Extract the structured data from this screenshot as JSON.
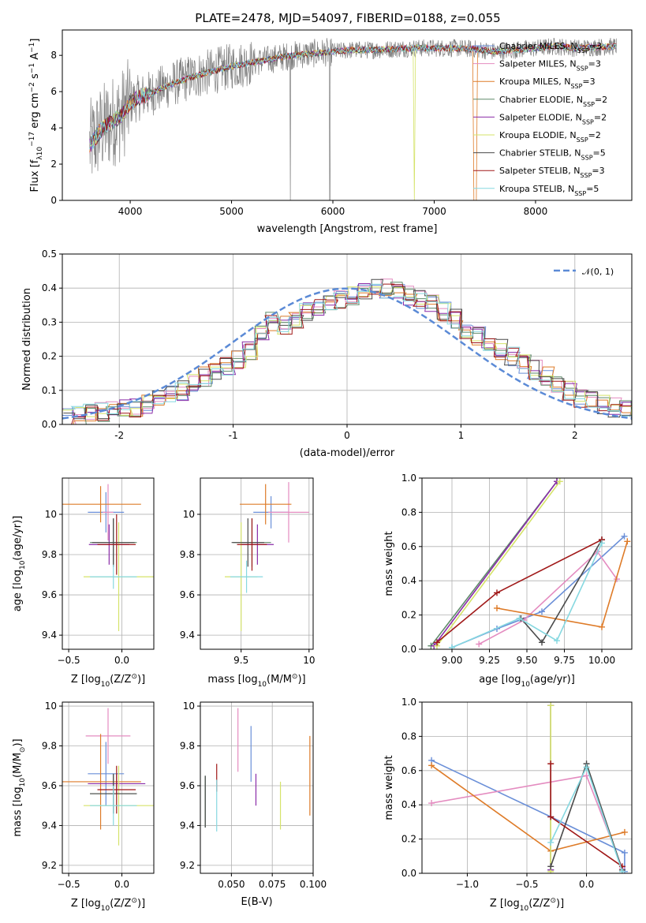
{
  "figure": {
    "title": "PLATE=2478, MJD=54097, FIBERID=0188, z=0.055"
  },
  "colors": {
    "data": "#808080",
    "chabrier_miles": "#6a8fd8",
    "salpeter_miles": "#e48cc0",
    "kroupa_miles": "#de7b28",
    "chabrier_elodie": "#5e8a6a",
    "salpeter_elodie": "#8a2ca8",
    "kroupa_elodie": "#d5e36a",
    "chabrier_stelib": "#4a4a4a",
    "salpeter_stelib": "#a01818",
    "kroupa_stelib": "#86d8e0",
    "gauss": "#5b8ad6",
    "grid": "#b0b0b0"
  },
  "chart_data": [
    {
      "id": "spectrum",
      "type": "line",
      "title": "PLATE=2478, MJD=54097, FIBERID=0188, z=0.055",
      "xlabel": "wavelength [Angstrom, rest frame]",
      "ylabel": "Flux [f",
      "ylabel_parts": [
        "Flux [f",
        "λ",
        "10",
        "−17",
        " erg cm",
        "−2",
        " s",
        "−1",
        " A",
        "−1",
        "]"
      ],
      "xlim": [
        3330,
        8950
      ],
      "ylim": [
        0,
        9.4
      ],
      "xticks": [
        4000,
        5000,
        6000,
        7000,
        8000
      ],
      "yticks": [
        0,
        2,
        4,
        6,
        8
      ],
      "grid": false,
      "legend_position": "top-right",
      "continuum": {
        "x": [
          3600,
          3700,
          3800,
          3900,
          4000,
          4100,
          4200,
          4400,
          4600,
          4800,
          5000,
          5200,
          5400,
          5600,
          5800,
          6000,
          6200,
          6400,
          6600,
          6800,
          7000,
          7200,
          7400,
          7600,
          7800,
          8000,
          8200,
          8400,
          8600,
          8800
        ],
        "y": [
          3.0,
          3.8,
          4.3,
          4.6,
          5.4,
          5.7,
          5.9,
          6.4,
          6.8,
          7.1,
          7.4,
          7.6,
          7.8,
          8.0,
          8.1,
          8.2,
          8.3,
          8.3,
          8.35,
          8.4,
          8.4,
          8.4,
          8.35,
          8.2,
          8.3,
          8.4,
          8.5,
          8.4,
          8.45,
          8.5
        ]
      },
      "series": [
        {
          "name": "Chabrier MILES, N",
          "nssp": "=3",
          "color": "#6a8fd8"
        },
        {
          "name": "Salpeter MILES, N",
          "nssp": "=3",
          "color": "#e48cc0"
        },
        {
          "name": "Kroupa MILES, N",
          "nssp": "=3",
          "color": "#de7b28"
        },
        {
          "name": "Chabrier ELODIE, N",
          "nssp": "=2",
          "color": "#5e8a6a"
        },
        {
          "name": "Salpeter ELODIE, N",
          "nssp": "=2",
          "color": "#8a2ca8"
        },
        {
          "name": "Kroupa ELODIE, N",
          "nssp": "=2",
          "color": "#d5e36a"
        },
        {
          "name": "Chabrier STELIB, N",
          "nssp": "=5",
          "color": "#4a4a4a"
        },
        {
          "name": "Salpeter STELIB, N",
          "nssp": "=3",
          "color": "#a01818"
        },
        {
          "name": "Kroupa STELIB, N",
          "nssp": "=5",
          "color": "#86d8e0"
        }
      ],
      "nssp_subscript": "SSP"
    },
    {
      "id": "residuals",
      "type": "line",
      "xlabel": "(data-model)/error",
      "ylabel": "Normed distribution",
      "xlim": [
        -2.5,
        2.5
      ],
      "ylim": [
        0,
        0.5
      ],
      "xticks": [
        -2,
        -1,
        0,
        1,
        2
      ],
      "yticks": [
        0.0,
        0.1,
        0.2,
        0.3,
        0.4,
        0.5
      ],
      "grid": true,
      "legend_position": "top-right",
      "legend_label": "𝒩(0, 1)",
      "bin_width": 0.1,
      "bins_start": -2.5,
      "histogram_base": [
        0.02,
        0.025,
        0.03,
        0.035,
        0.04,
        0.045,
        0.05,
        0.06,
        0.07,
        0.085,
        0.1,
        0.12,
        0.14,
        0.15,
        0.17,
        0.19,
        0.22,
        0.26,
        0.3,
        0.29,
        0.31,
        0.33,
        0.35,
        0.36,
        0.37,
        0.38,
        0.39,
        0.4,
        0.4,
        0.39,
        0.38,
        0.37,
        0.35,
        0.33,
        0.31,
        0.28,
        0.26,
        0.24,
        0.22,
        0.2,
        0.18,
        0.16,
        0.14,
        0.12,
        0.1,
        0.08,
        0.07,
        0.06,
        0.05,
        0.04,
        0.03
      ]
    },
    {
      "id": "age_vs_Z",
      "type": "scatter",
      "xlabel": "Z [log",
      "xlabel_parts": [
        "Z [log",
        "10",
        "(Z/Z",
        "⊙",
        ")]"
      ],
      "ylabel_parts": [
        "age  [log",
        "10",
        "(age/yr)]"
      ],
      "xlim": [
        -0.56,
        0.3
      ],
      "ylim": [
        9.33,
        10.18
      ],
      "xticks": [
        -0.5,
        0.0
      ],
      "xticklabels": [
        "−0.5",
        "0.0"
      ],
      "yticks": [
        9.4,
        9.6,
        9.8,
        10.0
      ],
      "grid": true,
      "points": [
        {
          "color": "#6a8fd8",
          "x": -0.15,
          "xerr": 0.17,
          "y": 10.01,
          "yerr": 0.1
        },
        {
          "color": "#e48cc0",
          "x": -0.13,
          "xerr": 0.05,
          "y": 10.01,
          "yerr": 0.14
        },
        {
          "color": "#de7b28",
          "x": -0.2,
          "xerr": 0.38,
          "y": 10.05,
          "yerr": 0.09
        },
        {
          "color": "#5e8a6a",
          "x": -0.08,
          "xerr": 0.22,
          "y": 9.86,
          "yerr": 0.12
        },
        {
          "color": "#8a2ca8",
          "x": -0.12,
          "xerr": 0.19,
          "y": 9.85,
          "yerr": 0.1
        },
        {
          "color": "#d5e36a",
          "x": -0.03,
          "xerr": 0.33,
          "y": 9.69,
          "yerr": 0.27
        },
        {
          "color": "#4a4a4a",
          "x": -0.08,
          "xerr": 0.2,
          "y": 9.86,
          "yerr": 0.12
        },
        {
          "color": "#a01818",
          "x": -0.05,
          "xerr": 0.18,
          "y": 9.85,
          "yerr": 0.15
        },
        {
          "color": "#86d8e0",
          "x": -0.08,
          "xerr": 0.22,
          "y": 9.69,
          "yerr": 0.06
        }
      ]
    },
    {
      "id": "age_vs_mass",
      "type": "scatter",
      "xlabel_parts": [
        "mass [log",
        "10",
        "(M/M",
        "⊙",
        ")]"
      ],
      "xlim": [
        9.2,
        10.03
      ],
      "ylim": [
        9.33,
        10.18
      ],
      "xticks": [
        9.5,
        10.0
      ],
      "yticks": [
        9.4,
        9.6,
        9.8,
        10.0
      ],
      "grid": true,
      "points": [
        {
          "color": "#6a8fd8",
          "x": 9.72,
          "xerr": 0.13,
          "y": 10.01,
          "yerr": 0.08
        },
        {
          "color": "#e48cc0",
          "x": 9.85,
          "xerr": 0.15,
          "y": 10.01,
          "yerr": 0.15
        },
        {
          "color": "#de7b28",
          "x": 9.68,
          "xerr": 0.19,
          "y": 10.05,
          "yerr": 0.1
        },
        {
          "color": "#5e8a6a",
          "x": 9.58,
          "xerr": 0.14,
          "y": 9.86,
          "yerr": 0.12
        },
        {
          "color": "#8a2ca8",
          "x": 9.62,
          "xerr": 0.12,
          "y": 9.85,
          "yerr": 0.1
        },
        {
          "color": "#d5e36a",
          "x": 9.5,
          "xerr": 0.12,
          "y": 9.69,
          "yerr": 0.27
        },
        {
          "color": "#4a4a4a",
          "x": 9.55,
          "xerr": 0.12,
          "y": 9.86,
          "yerr": 0.12
        },
        {
          "color": "#a01818",
          "x": 9.58,
          "xerr": 0.11,
          "y": 9.85,
          "yerr": 0.13
        },
        {
          "color": "#86d8e0",
          "x": 9.54,
          "xerr": 0.12,
          "y": 9.69,
          "yerr": 0.08
        }
      ]
    },
    {
      "id": "massweight_vs_age",
      "type": "line",
      "xlabel_parts": [
        "age  [log",
        "10",
        "(age/yr)]"
      ],
      "ylabel": "mass weight",
      "xlim": [
        8.8,
        10.2
      ],
      "ylim": [
        0,
        1
      ],
      "xticks": [
        9.0,
        9.25,
        9.5,
        9.75,
        10.0
      ],
      "xticklabels": [
        "9.00",
        "9.25",
        "9.50",
        "9.75",
        "10.00"
      ],
      "yticks": [
        0.0,
        0.2,
        0.4,
        0.6,
        0.8,
        1.0
      ],
      "grid": true,
      "series": [
        {
          "color": "#6a8fd8",
          "x": [
            9.0,
            9.3,
            9.6,
            10.15
          ],
          "y": [
            0.01,
            0.12,
            0.22,
            0.66
          ]
        },
        {
          "color": "#e48cc0",
          "x": [
            9.18,
            9.48,
            9.97,
            10.1
          ],
          "y": [
            0.03,
            0.17,
            0.57,
            0.41
          ]
        },
        {
          "color": "#de7b28",
          "x": [
            9.3,
            10.0,
            10.17
          ],
          "y": [
            0.24,
            0.13,
            0.63
          ]
        },
        {
          "color": "#5e8a6a",
          "x": [
            8.86,
            9.7
          ],
          "y": [
            0.02,
            0.98
          ]
        },
        {
          "color": "#8a2ca8",
          "x": [
            8.88,
            9.7
          ],
          "y": [
            0.02,
            0.98
          ]
        },
        {
          "color": "#d5e36a",
          "x": [
            8.9,
            9.72
          ],
          "y": [
            0.02,
            0.98
          ]
        },
        {
          "color": "#4a4a4a",
          "x": [
            9.46,
            9.6,
            10.0
          ],
          "y": [
            0.18,
            0.04,
            0.64
          ]
        },
        {
          "color": "#a01818",
          "x": [
            8.9,
            9.3,
            10.0
          ],
          "y": [
            0.04,
            0.33,
            0.64
          ]
        },
        {
          "color": "#86d8e0",
          "x": [
            9.0,
            9.45,
            9.7,
            10.0
          ],
          "y": [
            0.01,
            0.18,
            0.05,
            0.62
          ]
        }
      ]
    },
    {
      "id": "mass_vs_Z",
      "type": "scatter",
      "xlabel_parts": [
        "Z [log",
        "10",
        "(Z/Z",
        "⊙",
        ")]"
      ],
      "ylabel_parts": [
        "mass [log",
        "10",
        "(M/M",
        "⊙",
        ")]"
      ],
      "xlim": [
        -0.56,
        0.3
      ],
      "ylim": [
        9.16,
        10.02
      ],
      "xticks": [
        -0.5,
        0.0
      ],
      "xticklabels": [
        "−0.5",
        "0.0"
      ],
      "yticks": [
        9.2,
        9.4,
        9.6,
        9.8,
        10.0
      ],
      "grid": true,
      "points": [
        {
          "color": "#6a8fd8",
          "x": -0.15,
          "xerr": 0.17,
          "y": 9.66,
          "yerr": 0.16
        },
        {
          "color": "#e48cc0",
          "x": -0.13,
          "xerr": 0.21,
          "y": 9.85,
          "yerr": 0.14
        },
        {
          "color": "#de7b28",
          "x": -0.2,
          "xerr": 0.38,
          "y": 9.62,
          "yerr": 0.24
        },
        {
          "color": "#5e8a6a",
          "x": -0.08,
          "xerr": 0.22,
          "y": 9.56,
          "yerr": 0.1
        },
        {
          "color": "#8a2ca8",
          "x": -0.05,
          "xerr": 0.27,
          "y": 9.61,
          "yerr": 0.05
        },
        {
          "color": "#d5e36a",
          "x": -0.03,
          "xerr": 0.33,
          "y": 9.5,
          "yerr": 0.2
        },
        {
          "color": "#4a4a4a",
          "x": -0.08,
          "xerr": 0.22,
          "y": 9.56,
          "yerr": 0.1
        },
        {
          "color": "#a01818",
          "x": -0.05,
          "xerr": 0.18,
          "y": 9.58,
          "yerr": 0.12
        },
        {
          "color": "#86d8e0",
          "x": -0.08,
          "xerr": 0.22,
          "y": 9.5,
          "yerr": 0.1
        }
      ]
    },
    {
      "id": "mass_vs_EBV",
      "type": "scatter",
      "xlabel": "E(B-V)",
      "xlim": [
        0.031,
        0.1
      ],
      "ylim": [
        9.16,
        10.02
      ],
      "xticks": [
        0.05,
        0.075,
        0.1
      ],
      "xticklabels": [
        "0.050",
        "0.075",
        "0.100"
      ],
      "yticks": [
        9.2,
        9.4,
        9.6,
        9.8,
        10.0
      ],
      "grid": true,
      "points": [
        {
          "color": "#6a8fd8",
          "x": 0.062,
          "y": 9.76,
          "yerr": 0.14
        },
        {
          "color": "#e48cc0",
          "x": 0.054,
          "y": 9.83,
          "yerr": 0.16
        },
        {
          "color": "#de7b28",
          "x": 0.098,
          "y": 9.65,
          "yerr": 0.2
        },
        {
          "color": "#5e8a6a",
          "x": 0.034,
          "y": 9.52,
          "yerr": 0.13
        },
        {
          "color": "#8a2ca8",
          "x": 0.065,
          "y": 9.58,
          "yerr": 0.08
        },
        {
          "color": "#d5e36a",
          "x": 0.08,
          "y": 9.5,
          "yerr": 0.12
        },
        {
          "color": "#4a4a4a",
          "x": 0.034,
          "y": 9.52,
          "yerr": 0.13
        },
        {
          "color": "#a01818",
          "x": 0.041,
          "y": 9.64,
          "yerr": 0.07
        },
        {
          "color": "#86d8e0",
          "x": 0.041,
          "y": 9.5,
          "yerr": 0.13
        }
      ]
    },
    {
      "id": "massweight_vs_Z",
      "type": "line",
      "xlabel_parts": [
        "Z [log",
        "10",
        "(Z/Z",
        "⊙",
        ")]"
      ],
      "ylabel": "mass weight",
      "xlim": [
        -1.38,
        0.38
      ],
      "ylim": [
        0,
        1
      ],
      "xticks": [
        -1.0,
        -0.5,
        0.0
      ],
      "xticklabels": [
        "−1.0",
        "−0.5",
        "0.0"
      ],
      "yticks": [
        0.0,
        0.2,
        0.4,
        0.6,
        0.8,
        1.0
      ],
      "grid": true,
      "series": [
        {
          "color": "#6a8fd8",
          "x": [
            -1.3,
            -0.3,
            0.32,
            0.32
          ],
          "y": [
            0.66,
            0.33,
            0.12,
            0.01
          ]
        },
        {
          "color": "#e48cc0",
          "x": [
            -1.3,
            0.0,
            0.3
          ],
          "y": [
            0.41,
            0.57,
            0.03
          ]
        },
        {
          "color": "#de7b28",
          "x": [
            -1.3,
            -0.3,
            0.32
          ],
          "y": [
            0.63,
            0.13,
            0.24
          ]
        },
        {
          "color": "#5e8a6a",
          "x": [
            -0.3,
            -0.3
          ],
          "y": [
            0.02,
            0.98
          ]
        },
        {
          "color": "#8a2ca8",
          "x": [
            -0.3,
            -0.3
          ],
          "y": [
            0.02,
            0.98
          ]
        },
        {
          "color": "#d5e36a",
          "x": [
            -0.3,
            -0.3
          ],
          "y": [
            0.01,
            0.98
          ]
        },
        {
          "color": "#4a4a4a",
          "x": [
            -0.3,
            0.0,
            0.3
          ],
          "y": [
            0.04,
            0.64,
            0.02
          ]
        },
        {
          "color": "#a01818",
          "x": [
            -0.3,
            -0.3,
            0.3
          ],
          "y": [
            0.64,
            0.33,
            0.04
          ]
        },
        {
          "color": "#86d8e0",
          "x": [
            -0.3,
            0.0,
            0.3
          ],
          "y": [
            0.18,
            0.62,
            0.01
          ]
        }
      ]
    }
  ]
}
